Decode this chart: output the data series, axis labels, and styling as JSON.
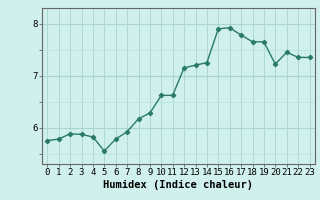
{
  "x": [
    0,
    1,
    2,
    3,
    4,
    5,
    6,
    7,
    8,
    9,
    10,
    11,
    12,
    13,
    14,
    15,
    16,
    17,
    18,
    19,
    20,
    21,
    22,
    23
  ],
  "y": [
    5.75,
    5.78,
    5.88,
    5.87,
    5.82,
    5.55,
    5.78,
    5.92,
    6.17,
    6.28,
    6.62,
    6.62,
    7.15,
    7.2,
    7.25,
    7.9,
    7.92,
    7.78,
    7.65,
    7.65,
    7.22,
    7.45,
    7.35,
    7.35
  ],
  "line_color": "#2a7a6a",
  "marker": "D",
  "marker_size": 2.2,
  "bg_color": "#cff0ec",
  "grid_color_major": "#aad4ce",
  "grid_color_minor": "#bde3de",
  "xlabel": "Humidex (Indice chaleur)",
  "ylim": [
    5.3,
    8.3
  ],
  "yticks": [
    6,
    7,
    8
  ],
  "xticks": [
    0,
    1,
    2,
    3,
    4,
    5,
    6,
    7,
    8,
    9,
    10,
    11,
    12,
    13,
    14,
    15,
    16,
    17,
    18,
    19,
    20,
    21,
    22,
    23
  ],
  "xlabel_fontsize": 7.5,
  "tick_fontsize": 6.5,
  "line_width": 1.0
}
